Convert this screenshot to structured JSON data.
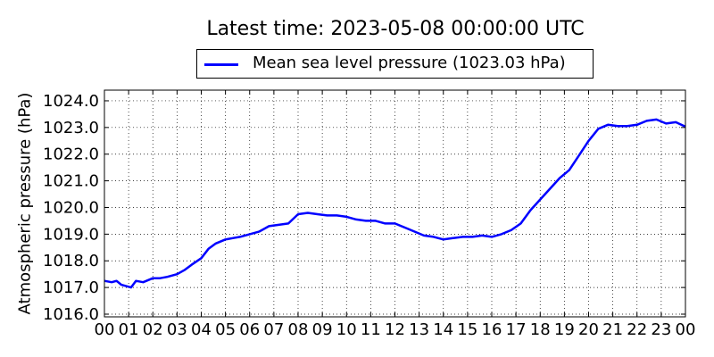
{
  "chart_data": {
    "type": "line",
    "title": "Latest time: 2023-05-08 00:00:00 UTC",
    "xlabel": "",
    "ylabel": "Atmospheric pressure (hPa)",
    "xlim": [
      0,
      24
    ],
    "ylim": [
      1015.9,
      1024.4
    ],
    "x_tick_labels": [
      "00",
      "01",
      "02",
      "03",
      "04",
      "05",
      "06",
      "07",
      "08",
      "09",
      "10",
      "11",
      "12",
      "13",
      "14",
      "15",
      "16",
      "17",
      "18",
      "19",
      "20",
      "21",
      "22",
      "23",
      "00"
    ],
    "y_ticks": [
      1016.0,
      1017.0,
      1018.0,
      1019.0,
      1020.0,
      1021.0,
      1022.0,
      1023.0,
      1024.0
    ],
    "y_tick_labels": [
      "1016.0",
      "1017.0",
      "1018.0",
      "1019.0",
      "1020.0",
      "1021.0",
      "1022.0",
      "1023.0",
      "1024.0"
    ],
    "grid": true,
    "legend_position": "top-center",
    "series": [
      {
        "name": "Mean sea level pressure (1023.03 hPa)",
        "color": "#0000ff",
        "x": [
          0,
          0.3,
          0.5,
          0.7,
          0.9,
          1.1,
          1.3,
          1.6,
          2.0,
          2.3,
          2.6,
          3.0,
          3.3,
          3.6,
          4.0,
          4.3,
          4.6,
          5.0,
          5.3,
          5.6,
          6.0,
          6.4,
          6.8,
          7.2,
          7.6,
          8.0,
          8.4,
          8.8,
          9.2,
          9.6,
          10.0,
          10.4,
          10.8,
          11.2,
          11.6,
          12.0,
          12.4,
          12.8,
          13.2,
          13.6,
          14.0,
          14.4,
          14.8,
          15.2,
          15.6,
          16.0,
          16.4,
          16.8,
          17.2,
          17.6,
          18.0,
          18.4,
          18.8,
          19.2,
          19.6,
          20.0,
          20.4,
          20.8,
          21.2,
          21.6,
          22.0,
          22.4,
          22.8,
          23.2,
          23.6,
          24.0
        ],
        "values": [
          1017.25,
          1017.2,
          1017.25,
          1017.1,
          1017.05,
          1017.0,
          1017.25,
          1017.2,
          1017.35,
          1017.35,
          1017.4,
          1017.5,
          1017.65,
          1017.85,
          1018.1,
          1018.45,
          1018.65,
          1018.8,
          1018.85,
          1018.9,
          1019.0,
          1019.1,
          1019.3,
          1019.35,
          1019.4,
          1019.75,
          1019.8,
          1019.75,
          1019.7,
          1019.7,
          1019.65,
          1019.55,
          1019.5,
          1019.5,
          1019.4,
          1019.4,
          1019.25,
          1019.1,
          1018.95,
          1018.9,
          1018.8,
          1018.85,
          1018.9,
          1018.9,
          1018.95,
          1018.9,
          1019.0,
          1019.15,
          1019.4,
          1019.9,
          1020.3,
          1020.7,
          1021.1,
          1021.4,
          1021.95,
          1022.5,
          1022.95,
          1023.1,
          1023.05,
          1023.05,
          1023.1,
          1023.25,
          1023.3,
          1023.15,
          1023.2,
          1023.03
        ]
      }
    ]
  }
}
